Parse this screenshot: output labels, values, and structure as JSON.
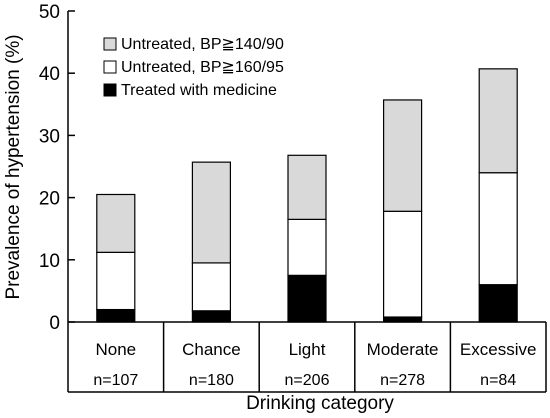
{
  "chart_data": {
    "type": "bar",
    "stacked": true,
    "title": "",
    "xlabel": "Drinking category",
    "ylabel": "Prevalence of hypertension (%)",
    "ylim": [
      0,
      50
    ],
    "yticks": [
      "0",
      "10",
      "20",
      "30",
      "40",
      "50"
    ],
    "grid": false,
    "legend_position": "top-left",
    "categories": [
      "None",
      "Chance",
      "Light",
      "Moderate",
      "Excessive"
    ],
    "sample_sizes": [
      "n=107",
      "n=180",
      "n=206",
      "n=278",
      "n=84"
    ],
    "series": [
      {
        "name": "Treated with medicine",
        "color": "#000000",
        "values": [
          2.0,
          1.8,
          7.5,
          0.8,
          6.0
        ]
      },
      {
        "name": "Untreated, BP≧160/95",
        "color": "#ffffff",
        "values": [
          9.2,
          7.7,
          9.0,
          17.0,
          18.0
        ]
      },
      {
        "name": "Untreated, BP≧140/90",
        "color": "#d9d9d9",
        "values": [
          9.3,
          16.2,
          10.3,
          17.9,
          16.7
        ]
      }
    ],
    "legend_order": [
      "Untreated, BP≧140/90",
      "Untreated, BP≧160/95",
      "Treated with medicine"
    ]
  }
}
